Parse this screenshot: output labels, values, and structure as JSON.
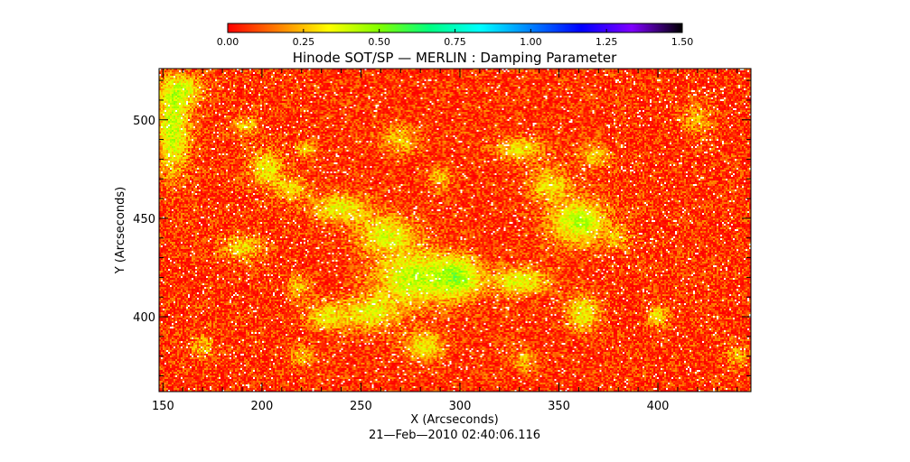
{
  "chart_data": {
    "type": "heatmap",
    "title": "Hinode SOT/SP — MERLIN : Damping Parameter",
    "xlabel": "X (Arcseconds)",
    "ylabel": "Y (Arcseconds)",
    "date_label": "21—Feb—2010 02:40:06.116",
    "xlim": [
      148,
      447
    ],
    "ylim": [
      362,
      526
    ],
    "x_ticks": [
      150,
      200,
      250,
      300,
      350,
      400
    ],
    "y_ticks": [
      400,
      450,
      500
    ],
    "x_tick_labels": [
      "150",
      "200",
      "250",
      "300",
      "350",
      "400"
    ],
    "y_tick_labels": [
      "400",
      "450",
      "500"
    ],
    "colorbar": {
      "range": [
        0.0,
        1.5
      ],
      "ticks": [
        0.0,
        0.25,
        0.5,
        0.75,
        1.0,
        1.25,
        1.5
      ],
      "tick_labels": [
        "0.00",
        "0.25",
        "0.50",
        "0.75",
        "1.00",
        "1.25",
        "1.50"
      ],
      "colormap": [
        "#ff0000",
        "#ff8000",
        "#ffff00",
        "#80ff00",
        "#00ff80",
        "#00ffff",
        "#0080ff",
        "#0000ff",
        "#8000ff",
        "#000000"
      ]
    },
    "field": {
      "background_value": 0.08,
      "enhanced_value": 0.45,
      "enhanced_regions": [
        {
          "x": 155,
          "y": 495,
          "sx": 8,
          "sy": 22,
          "a": 0.9
        },
        {
          "x": 160,
          "y": 515,
          "sx": 10,
          "sy": 8,
          "a": 0.6
        },
        {
          "x": 192,
          "y": 497,
          "sx": 6,
          "sy": 5,
          "a": 0.5
        },
        {
          "x": 202,
          "y": 475,
          "sx": 8,
          "sy": 9,
          "a": 0.7
        },
        {
          "x": 215,
          "y": 465,
          "sx": 8,
          "sy": 6,
          "a": 0.55
        },
        {
          "x": 222,
          "y": 485,
          "sx": 5,
          "sy": 4,
          "a": 0.55
        },
        {
          "x": 190,
          "y": 435,
          "sx": 10,
          "sy": 6,
          "a": 0.6
        },
        {
          "x": 240,
          "y": 455,
          "sx": 14,
          "sy": 7,
          "a": 0.7
        },
        {
          "x": 263,
          "y": 442,
          "sx": 14,
          "sy": 9,
          "a": 0.75
        },
        {
          "x": 278,
          "y": 420,
          "sx": 20,
          "sy": 13,
          "a": 0.95
        },
        {
          "x": 300,
          "y": 420,
          "sx": 10,
          "sy": 10,
          "a": 0.85
        },
        {
          "x": 255,
          "y": 402,
          "sx": 14,
          "sy": 8,
          "a": 0.7
        },
        {
          "x": 232,
          "y": 400,
          "sx": 10,
          "sy": 7,
          "a": 0.6
        },
        {
          "x": 282,
          "y": 385,
          "sx": 10,
          "sy": 8,
          "a": 0.65
        },
        {
          "x": 270,
          "y": 490,
          "sx": 10,
          "sy": 7,
          "a": 0.5
        },
        {
          "x": 330,
          "y": 485,
          "sx": 12,
          "sy": 6,
          "a": 0.6
        },
        {
          "x": 345,
          "y": 467,
          "sx": 10,
          "sy": 8,
          "a": 0.6
        },
        {
          "x": 360,
          "y": 448,
          "sx": 14,
          "sy": 11,
          "a": 0.95
        },
        {
          "x": 330,
          "y": 418,
          "sx": 14,
          "sy": 7,
          "a": 0.75
        },
        {
          "x": 362,
          "y": 402,
          "sx": 8,
          "sy": 9,
          "a": 0.7
        },
        {
          "x": 368,
          "y": 482,
          "sx": 8,
          "sy": 6,
          "a": 0.5
        },
        {
          "x": 380,
          "y": 440,
          "sx": 6,
          "sy": 5,
          "a": 0.45
        },
        {
          "x": 400,
          "y": 400,
          "sx": 5,
          "sy": 5,
          "a": 0.6
        },
        {
          "x": 420,
          "y": 500,
          "sx": 8,
          "sy": 8,
          "a": 0.4
        },
        {
          "x": 440,
          "y": 380,
          "sx": 6,
          "sy": 6,
          "a": 0.4
        },
        {
          "x": 170,
          "y": 385,
          "sx": 6,
          "sy": 6,
          "a": 0.45
        },
        {
          "x": 220,
          "y": 380,
          "sx": 6,
          "sy": 5,
          "a": 0.45
        },
        {
          "x": 332,
          "y": 378,
          "sx": 6,
          "sy": 6,
          "a": 0.45
        },
        {
          "x": 290,
          "y": 470,
          "sx": 6,
          "sy": 6,
          "a": 0.45
        },
        {
          "x": 218,
          "y": 415,
          "sx": 6,
          "sy": 6,
          "a": 0.45
        }
      ]
    }
  }
}
